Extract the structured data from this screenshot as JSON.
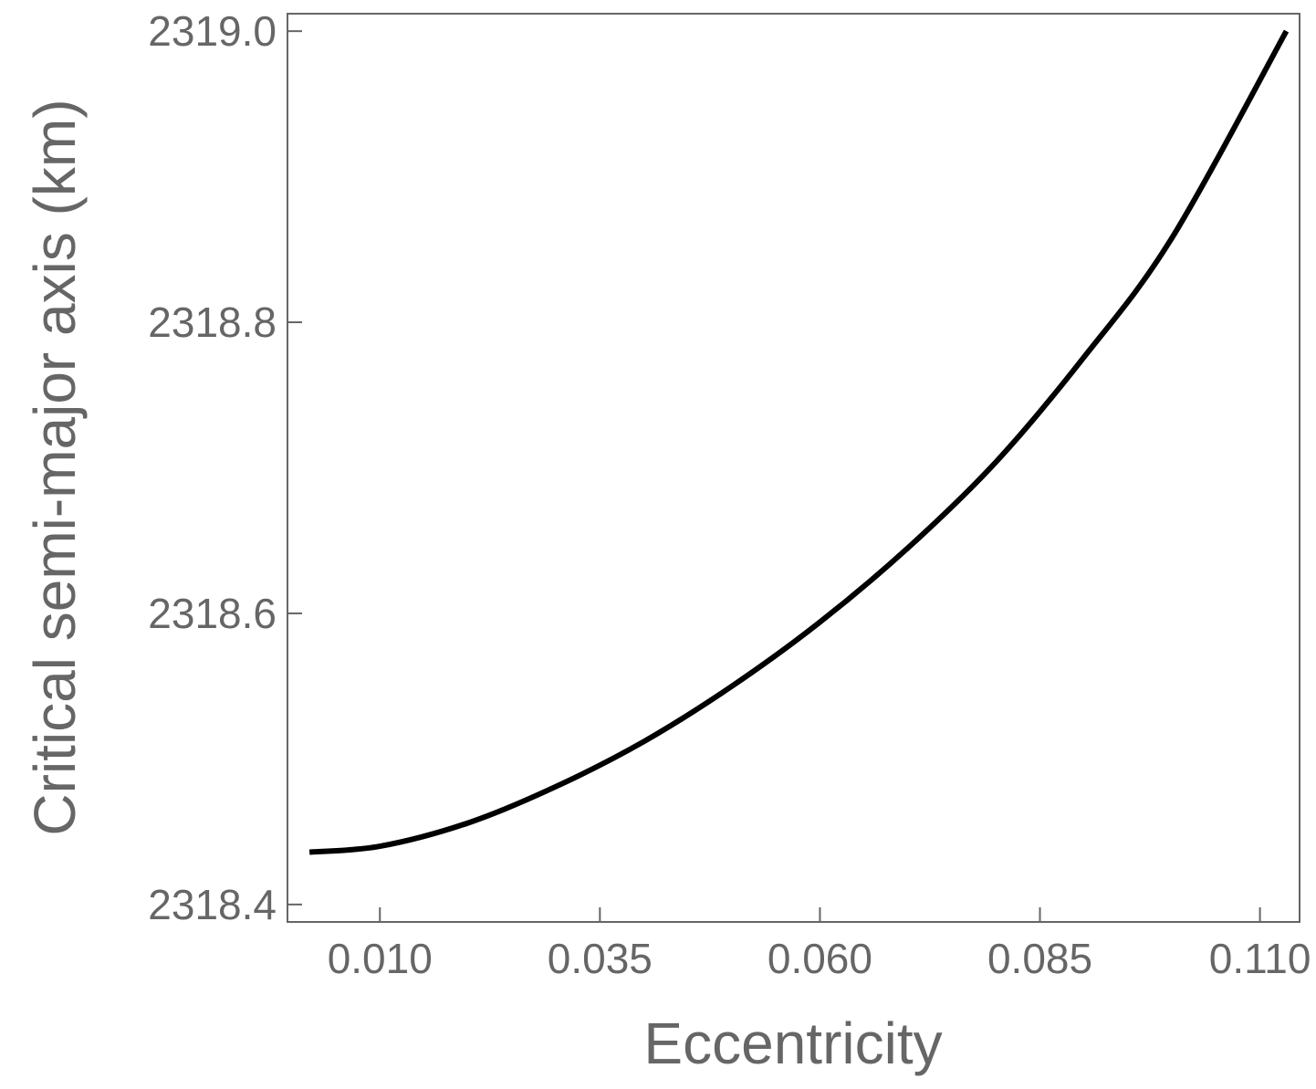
{
  "chart_data": {
    "type": "line",
    "title": "",
    "xlabel": "Eccentricity",
    "ylabel": "Critical semi-major axis (km)",
    "xlim": [
      -0.0005,
      0.1145
    ],
    "ylim": [
      2318.388,
      2319.012
    ],
    "x_ticks": [
      0.01,
      0.035,
      0.06,
      0.085,
      0.11
    ],
    "x_tick_labels": [
      "0.010",
      "0.035",
      "0.060",
      "0.085",
      "0.110"
    ],
    "y_ticks": [
      2318.4,
      2318.6,
      2318.8,
      2319.0
    ],
    "y_tick_labels": [
      "2318.4",
      "2318.6",
      "2318.8",
      "2319.0"
    ],
    "grid": false,
    "legend": "none",
    "colors": {
      "line": "#000000",
      "frame": "#666666",
      "text": "#666666"
    },
    "series": [
      {
        "x": [
          0.002,
          0.01,
          0.02,
          0.03,
          0.04,
          0.05,
          0.06,
          0.07,
          0.08,
          0.09,
          0.1,
          0.113
        ],
        "y": [
          2318.436,
          2318.44,
          2318.456,
          2318.481,
          2318.512,
          2318.55,
          2318.594,
          2318.645,
          2318.704,
          2318.776,
          2318.858,
          2319.0
        ]
      }
    ]
  }
}
